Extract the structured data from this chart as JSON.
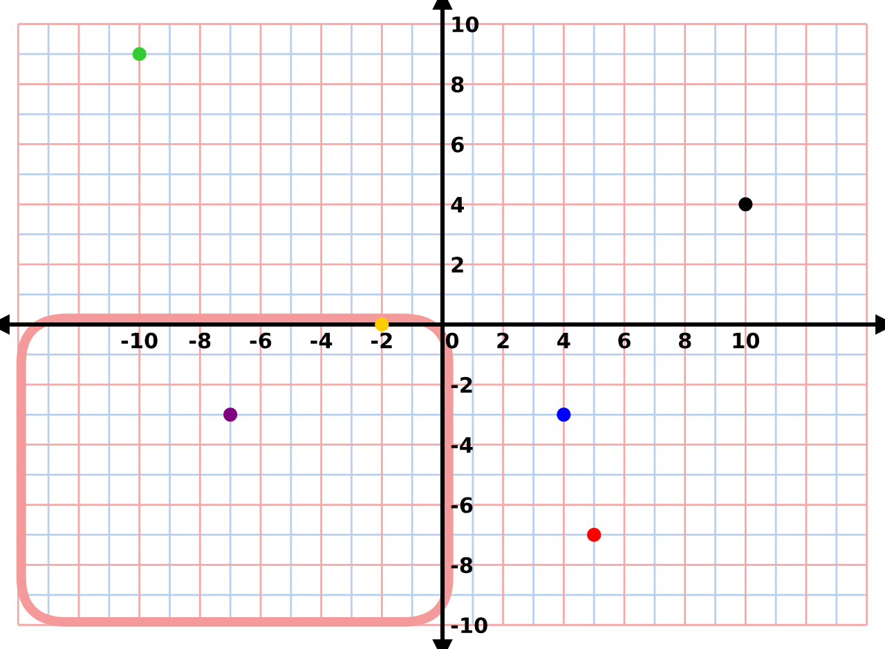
{
  "chart_data": {
    "type": "scatter",
    "x": [
      -10,
      10,
      -2,
      -7,
      4,
      5
    ],
    "values": [
      9,
      4,
      0,
      -3,
      -3,
      -7
    ],
    "colors": [
      "#33cc33",
      "#000000",
      "#ffcc00",
      "#800080",
      "#0000ff",
      "#ff0000"
    ],
    "marker": "circle",
    "xlim": [
      -14.6,
      14.6
    ],
    "ylim": [
      -10.8,
      10.8
    ],
    "xticks": [
      {
        "value": -14,
        "label": null
      },
      {
        "value": -13,
        "label": null
      },
      {
        "value": -12,
        "label": null
      },
      {
        "value": -11,
        "label": null
      },
      -10,
      {
        "value": -9,
        "label": null
      },
      -8,
      {
        "value": -7,
        "label": null
      },
      -6,
      {
        "value": -5,
        "label": null
      },
      -4,
      {
        "value": -3,
        "label": null
      },
      -2,
      {
        "value": -1,
        "label": null
      },
      0,
      {
        "value": 1,
        "label": null
      },
      2,
      {
        "value": 3,
        "label": null
      },
      4,
      {
        "value": 5,
        "label": null
      },
      6,
      {
        "value": 7,
        "label": null
      },
      8,
      {
        "value": 9,
        "label": null
      },
      10,
      {
        "value": 11,
        "label": null
      },
      {
        "value": 12,
        "label": null
      },
      {
        "value": 13,
        "label": null
      },
      {
        "value": 14,
        "label": null
      }
    ],
    "yticks": [
      10,
      {
        "value": 9,
        "label": null
      },
      8,
      {
        "value": 7,
        "label": null
      },
      6,
      {
        "value": 5,
        "label": null
      },
      4,
      {
        "value": 3,
        "label": null
      },
      2,
      {
        "value": 1,
        "label": null
      },
      {
        "value": 0,
        "label": null
      },
      {
        "value": -1,
        "label": null
      },
      -2,
      {
        "value": -3,
        "label": null
      },
      -4,
      {
        "value": -5,
        "label": null
      },
      -6,
      {
        "value": -7,
        "label": null
      },
      -8,
      {
        "value": -9,
        "label": null
      },
      -10
    ],
    "grid": true
  }
}
